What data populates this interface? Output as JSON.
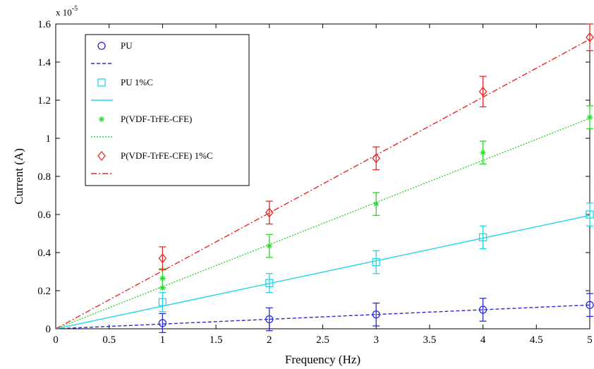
{
  "chart_data": {
    "type": "line",
    "title": "",
    "xlabel": "Frequency (Hz)",
    "ylabel": "Current (A)",
    "y_exponent_base": "x 10",
    "y_exponent_power": "-5",
    "xlim": [
      0,
      5
    ],
    "ylim": [
      0,
      1.6
    ],
    "x_ticks": [
      0,
      0.5,
      1,
      1.5,
      2,
      2.5,
      3,
      3.5,
      4,
      4.5,
      5
    ],
    "y_ticks": [
      0,
      0.2,
      0.4,
      0.6,
      0.8,
      1,
      1.2,
      1.4,
      1.6
    ],
    "x_tick_labels": [
      "0",
      "0.5",
      "1",
      "1.5",
      "2",
      "2.5",
      "3",
      "3.5",
      "4",
      "4.5",
      "5"
    ],
    "y_tick_labels": [
      "0",
      "0.2",
      "0.4",
      "0.6",
      "0.8",
      "1",
      "1.2",
      "1.4",
      "1.6"
    ],
    "grid": false,
    "legend_position": "top-left",
    "x": [
      1,
      2,
      3,
      4,
      5
    ],
    "series": [
      {
        "name": "PU",
        "marker": "circle",
        "color": "#2a2ad6",
        "line_style": "dashed",
        "values": [
          0.03,
          0.05,
          0.075,
          0.1,
          0.125
        ],
        "error": [
          0.05,
          0.06,
          0.06,
          0.06,
          0.06
        ],
        "fit": [
          [
            0,
            0
          ],
          [
            5,
            0.125
          ]
        ]
      },
      {
        "name": "PU 1%C",
        "marker": "square",
        "color": "#22d6e6",
        "line_style": "solid",
        "values": [
          0.14,
          0.24,
          0.35,
          0.48,
          0.6
        ],
        "error": [
          0.05,
          0.05,
          0.06,
          0.06,
          0.06
        ],
        "fit": [
          [
            0,
            0
          ],
          [
            5,
            0.595
          ]
        ]
      },
      {
        "name": "P(VDF-TrFE-CFE)",
        "marker": "star",
        "color": "#2ad62a",
        "line_style": "dotted",
        "values": [
          0.265,
          0.435,
          0.655,
          0.925,
          1.11
        ],
        "error": [
          0.05,
          0.06,
          0.06,
          0.06,
          0.06
        ],
        "extra_points": [
          [
            1,
            0.215
          ]
        ],
        "fit": [
          [
            0,
            0
          ],
          [
            5,
            1.105
          ]
        ]
      },
      {
        "name": "P(VDF-TrFE-CFE) 1%C",
        "marker": "diamond",
        "color": "#e62a2a",
        "line_style": "dashdot",
        "values": [
          0.37,
          0.61,
          0.895,
          1.245,
          1.53
        ],
        "error": [
          0.06,
          0.06,
          0.06,
          0.08,
          0.07
        ],
        "fit": [
          [
            0,
            0
          ],
          [
            5,
            1.52
          ]
        ]
      }
    ]
  }
}
